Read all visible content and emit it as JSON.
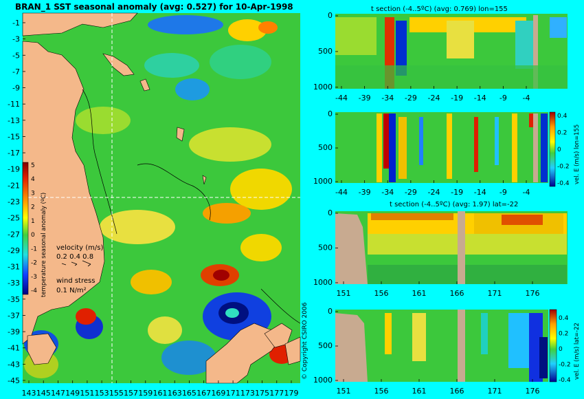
{
  "page": {
    "background": "#00ffff"
  },
  "chart_data": [
    {
      "type": "heatmap",
      "title": "BRAN_1 SST seasonal anomaly (avg: 0.527) for 10-Apr-1998",
      "x_ticks": [
        "143",
        "145",
        "147",
        "149",
        "151",
        "153",
        "155",
        "157",
        "159",
        "161",
        "163",
        "165",
        "167",
        "169",
        "171",
        "173",
        "175",
        "177",
        "179"
      ],
      "y_ticks": [
        "-1",
        "-3",
        "-5",
        "-7",
        "-9",
        "-11",
        "-13",
        "-15",
        "-17",
        "-19",
        "-21",
        "-23",
        "-25",
        "-27",
        "-29",
        "-31",
        "-33",
        "-35",
        "-37",
        "-39",
        "-41",
        "-43",
        "-45"
      ],
      "x_range": [
        143,
        180
      ],
      "y_range": [
        -45,
        0
      ],
      "crosshair": {
        "lon": 155,
        "lat": -22
      },
      "colorbar": {
        "label": "temperature seasonal anomaly (ºC)",
        "ticks": [
          "5",
          "4",
          "3",
          "2",
          "1",
          "0",
          "-1",
          "-2",
          "-3",
          "-4"
        ],
        "range": [
          -4,
          5
        ]
      },
      "velocity_legend": {
        "title": "velocity (m/s)",
        "values": "0.2 0.4 0.8"
      },
      "wind_legend": {
        "title": "wind stress",
        "value": "0.1 N/m²"
      }
    },
    {
      "type": "heatmap",
      "title": "t section (-4..5ºC) (avg: 0.769) lon=155",
      "x_ticks": [
        "-44",
        "-39",
        "-34",
        "-29",
        "-24",
        "-19",
        "-14",
        "-9",
        "-4"
      ],
      "y_ticks": [
        "0",
        "500",
        "1000"
      ],
      "x_range": [
        -45,
        0
      ],
      "y_range": [
        0,
        1050
      ]
    },
    {
      "type": "heatmap",
      "x_ticks": [
        "-44",
        "-39",
        "-34",
        "-29",
        "-24",
        "-19",
        "-14",
        "-9",
        "-4"
      ],
      "y_ticks": [
        "0",
        "500",
        "1000"
      ],
      "colorbar": {
        "label": "vel. E (m/s) lon=155",
        "ticks": [
          "0.4",
          "0.2",
          "0",
          "-0.2",
          "-0.4"
        ],
        "range": [
          -0.4,
          0.4
        ]
      }
    },
    {
      "type": "heatmap",
      "title": "t section (-4..5ºC) (avg: 1.97) lat=-22",
      "x_ticks": [
        "151",
        "156",
        "161",
        "166",
        "171",
        "176"
      ],
      "y_ticks": [
        "0",
        "500",
        "1000"
      ],
      "x_range": [
        150,
        180
      ],
      "y_range": [
        0,
        1050
      ]
    },
    {
      "type": "heatmap",
      "x_ticks": [
        "151",
        "156",
        "161",
        "166",
        "171",
        "176"
      ],
      "y_ticks": [
        "0",
        "500",
        "1000"
      ],
      "colorbar": {
        "label": "vel. E (m/s) lat=-22",
        "ticks": [
          "0.4",
          "0.2",
          "0",
          "-0.2",
          "-0.4"
        ],
        "range": [
          -0.4,
          0.4
        ]
      }
    }
  ],
  "copyright": "© Copyright CSIRO 2006",
  "colors": {
    "land": "#f4b88a",
    "field": "#3cc83c",
    "warm": "#ffd000",
    "hot": "#c00000",
    "cold": "#1030e0",
    "cyan_bg": "#00ffff",
    "section_land": "#c8aa90"
  }
}
